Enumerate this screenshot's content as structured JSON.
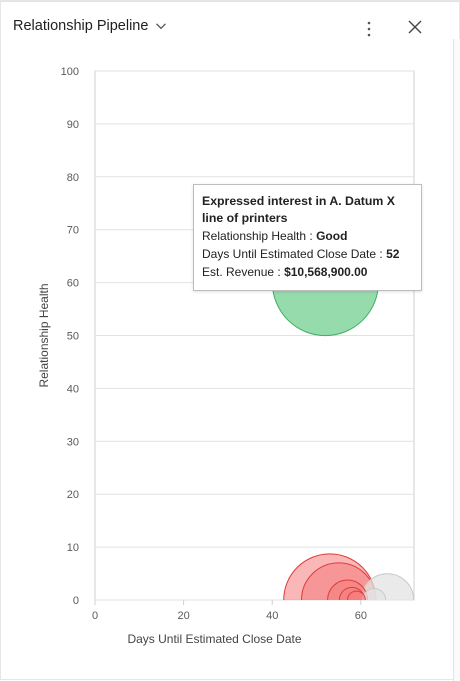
{
  "header": {
    "title": "Relationship Pipeline",
    "more_icon": "more-vertical-icon",
    "close_icon": "close-icon",
    "chevron_icon": "chevron-down-icon"
  },
  "tooltip": {
    "title": "Expressed interest in A. Datum X line of printers",
    "health_label": "Relationship Health",
    "health_value": "Good",
    "days_label": "Days Until Estimated Close Date",
    "days_value": "52",
    "revenue_label": "Est. Revenue",
    "revenue_value": "$10,568,900.00"
  },
  "chart_data": {
    "type": "scatter",
    "subtype": "bubble",
    "xlabel": "Days Until Estimated Close Date",
    "ylabel": "Relationship Health",
    "xlim": [
      0,
      72
    ],
    "ylim": [
      0,
      100
    ],
    "xticks": [
      0,
      20,
      40,
      60
    ],
    "yticks": [
      0,
      10,
      20,
      30,
      40,
      50,
      60,
      70,
      80,
      90,
      100
    ],
    "grid": true,
    "colors": {
      "good": "#8fd9a6",
      "good_stroke": "#3fae64",
      "poor": "#f47b7b",
      "poor_stroke": "#e03b3b",
      "neutral": "#e3e3e3",
      "neutral_stroke": "#c9c9c9"
    },
    "points": [
      {
        "x": 52,
        "y": 60,
        "r": 10568900,
        "category": "good"
      },
      {
        "x": 53,
        "y": 0,
        "r": 8000000,
        "category": "poor"
      },
      {
        "x": 55,
        "y": 0,
        "r": 5200000,
        "category": "poor"
      },
      {
        "x": 57,
        "y": 0,
        "r": 1500000,
        "category": "poor"
      },
      {
        "x": 58,
        "y": 0,
        "r": 600000,
        "category": "poor"
      },
      {
        "x": 59,
        "y": 0,
        "r": 300000,
        "category": "poor"
      },
      {
        "x": 63,
        "y": 0,
        "r": 500000,
        "category": "neutral"
      },
      {
        "x": 66,
        "y": 0,
        "r": 2600000,
        "category": "neutral"
      }
    ]
  }
}
